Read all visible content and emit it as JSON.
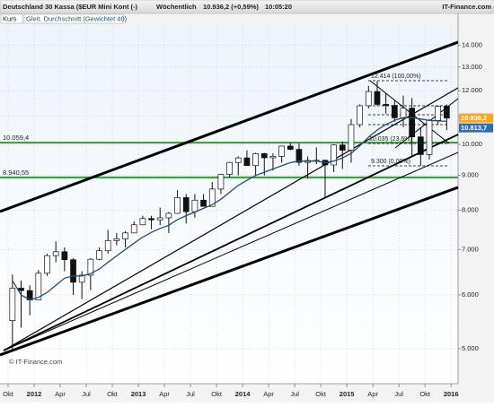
{
  "header": {
    "instrument": "Deutschland 30 Kassa ($EUR Mini Kont (-)",
    "interval": "Wöchentlich",
    "quote": "10.936,2 (+0,59%)",
    "time": "10:05:20",
    "brand": "IT-Finance.com"
  },
  "chart_data": {
    "type": "candlestick",
    "log_scale": true,
    "grid": true,
    "copyright": "© IT-Finance.com",
    "categories": [
      "2011-10",
      "2011-11",
      "2011-12",
      "2012-01",
      "2012-02",
      "2012-03",
      "2012-04",
      "2012-05",
      "2012-06",
      "2012-07",
      "2012-08",
      "2012-09",
      "2012-10",
      "2012-11",
      "2012-12",
      "2013-01",
      "2013-02",
      "2013-03",
      "2013-04",
      "2013-05",
      "2013-06",
      "2013-07",
      "2013-08",
      "2013-09",
      "2013-10",
      "2013-11",
      "2013-12",
      "2014-01",
      "2014-02",
      "2014-03",
      "2014-04",
      "2014-05",
      "2014-06",
      "2014-07",
      "2014-08",
      "2014-09",
      "2014-10",
      "2014-11",
      "2014-12",
      "2015-01",
      "2015-02",
      "2015-03",
      "2015-04",
      "2015-05",
      "2015-06",
      "2015-07",
      "2015-08",
      "2015-09",
      "2015-10",
      "2015-11",
      "2015-12"
    ],
    "series": [
      {
        "name": "Kurs",
        "up_color": "#ffffff",
        "down_color": "#111111",
        "open": [
          5500,
          6141,
          6089,
          5898,
          6458,
          6856,
          6947,
          6761,
          6264,
          6416,
          6772,
          6970,
          7216,
          7260,
          7405,
          7612,
          7776,
          7741,
          7795,
          7914,
          8348,
          7959,
          8276,
          8103,
          8594,
          9033,
          9405,
          9552,
          9306,
          9692,
          9556,
          9603,
          9943,
          9833,
          9407,
          9470,
          9474,
          9326,
          9980,
          9806,
          10694,
          11402,
          11966,
          11454,
          11414,
          10945,
          11309,
          10259,
          9660,
          10850,
          11382
        ],
        "high": [
          6430,
          6300,
          6200,
          6530,
          6900,
          7194,
          7050,
          6800,
          6500,
          6800,
          7050,
          7480,
          7400,
          7450,
          7700,
          7850,
          7850,
          8070,
          7950,
          8560,
          8450,
          8450,
          8450,
          8800,
          9050,
          9420,
          9600,
          9800,
          9720,
          9720,
          9700,
          9950,
          10050,
          10030,
          9600,
          9900,
          9500,
          10000,
          10100,
          10900,
          11450,
          12200,
          12390,
          11900,
          11600,
          11800,
          11700,
          10600,
          10900,
          11400,
          11450
        ],
        "low": [
          4966,
          5370,
          5600,
          5900,
          6400,
          6700,
          6500,
          6000,
          5915,
          6100,
          6750,
          6900,
          7100,
          7050,
          7400,
          7600,
          7500,
          7600,
          7400,
          7900,
          7650,
          7800,
          8100,
          8100,
          8450,
          8950,
          9000,
          9300,
          9000,
          9000,
          9150,
          9400,
          9800,
          9300,
          8900,
          9350,
          8355,
          9100,
          9200,
          9400,
          10600,
          11300,
          11400,
          11100,
          10800,
          10600,
          9600,
          9300,
          9500,
          10700,
          10500
        ],
        "close": [
          6141,
          6089,
          5898,
          6458,
          6856,
          6947,
          6761,
          6264,
          6416,
          6772,
          6970,
          7216,
          7260,
          7405,
          7612,
          7776,
          7741,
          7795,
          7914,
          8348,
          7959,
          8276,
          8103,
          8594,
          9033,
          9405,
          9552,
          9306,
          9692,
          9556,
          9603,
          9943,
          9833,
          9407,
          9470,
          9474,
          9326,
          9980,
          9806,
          10694,
          11402,
          11966,
          11454,
          11414,
          10945,
          11309,
          10259,
          9660,
          10850,
          11382,
          10936.2
        ]
      },
      {
        "name": "Gleit. Durchschnitt (Gewichtet 40)",
        "color": "#1f4e79",
        "values": [
          6300,
          6000,
          5900,
          5950,
          6050,
          6200,
          6350,
          6400,
          6400,
          6450,
          6550,
          6700,
          6850,
          7000,
          7150,
          7300,
          7420,
          7520,
          7600,
          7750,
          7850,
          7950,
          8050,
          8150,
          8300,
          8500,
          8700,
          8850,
          9000,
          9100,
          9200,
          9300,
          9400,
          9450,
          9450,
          9450,
          9400,
          9450,
          9550,
          9700,
          9950,
          10250,
          10500,
          10700,
          10850,
          10950,
          10950,
          10900,
          10850,
          10830,
          10813.7
        ]
      }
    ],
    "ylim": [
      4480,
      14900
    ],
    "yticks": [
      {
        "value": 5000,
        "label": "5.000"
      },
      {
        "value": 6000,
        "label": "6.000"
      },
      {
        "value": 7000,
        "label": "7.000"
      },
      {
        "value": 8000,
        "label": "8.000"
      },
      {
        "value": 9000,
        "label": "9.000"
      },
      {
        "value": 10000,
        "label": "10.000"
      },
      {
        "value": 11000,
        "label": "11.000"
      },
      {
        "value": 12000,
        "label": "12.000"
      },
      {
        "value": 13000,
        "label": "13.000"
      },
      {
        "value": 14000,
        "label": "14.000"
      }
    ],
    "xticks": [
      {
        "value": "2011-10",
        "label": "Okt"
      },
      {
        "value": "2012-01",
        "label": "2012"
      },
      {
        "value": "2012-04",
        "label": "Apr"
      },
      {
        "value": "2012-07",
        "label": "Jul"
      },
      {
        "value": "2012-10",
        "label": "Okt"
      },
      {
        "value": "2013-01",
        "label": "2013"
      },
      {
        "value": "2013-04",
        "label": "Apr"
      },
      {
        "value": "2013-07",
        "label": "Jul"
      },
      {
        "value": "2013-10",
        "label": "Okt"
      },
      {
        "value": "2014-01",
        "label": "2014"
      },
      {
        "value": "2014-04",
        "label": "Apr"
      },
      {
        "value": "2014-07",
        "label": "Jul"
      },
      {
        "value": "2014-10",
        "label": "Okt"
      },
      {
        "value": "2015-01",
        "label": "2015"
      },
      {
        "value": "2015-04",
        "label": "Apr"
      },
      {
        "value": "2015-07",
        "label": "Jul"
      },
      {
        "value": "2015-10",
        "label": "Okt"
      },
      {
        "value": "2016-01",
        "label": "2016"
      }
    ],
    "levels": [
      {
        "value": 10059.4,
        "label": "10.059,4",
        "color": "#2e9e2e"
      },
      {
        "value": 8940.55,
        "label": "8.940,55",
        "color": "#2e9e2e"
      }
    ],
    "tags": [
      {
        "value": 10936.2,
        "label": "10.936,2",
        "color": "#f5a623"
      },
      {
        "value": 10813.7,
        "label": "10.813,7",
        "color": "#2f6db3"
      }
    ],
    "annotations": [
      "12.414 (100,00%)",
      "10.035 (23,6%)",
      "9.300 (0,00%)"
    ]
  }
}
